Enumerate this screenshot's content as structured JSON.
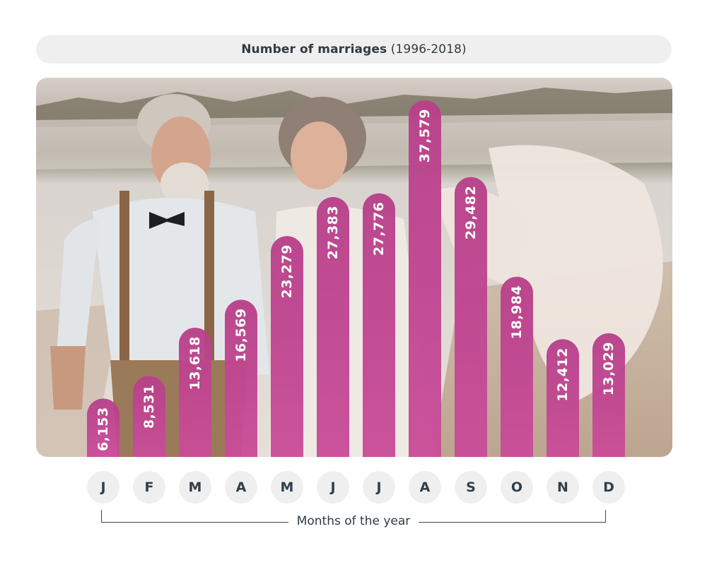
{
  "title": {
    "bold": "Number of marriages",
    "normal": "(1996-2018)"
  },
  "xlabel": "Months of the year",
  "colors": {
    "bar": "#b8408a",
    "bar_light": "#c94d98",
    "label": "#ffffff",
    "chip_bg": "#efefef"
  },
  "chart_data": {
    "type": "bar",
    "title": "Number of marriages (1996-2018)",
    "xlabel": "Months of the year",
    "ylabel": "",
    "categories": [
      "J",
      "F",
      "M",
      "A",
      "M",
      "J",
      "J",
      "A",
      "S",
      "O",
      "N",
      "D"
    ],
    "values": [
      6153,
      8531,
      13618,
      16569,
      23279,
      27383,
      27776,
      37579,
      29482,
      18984,
      12412,
      13029
    ],
    "value_labels": [
      "6,153",
      "8,531",
      "13,618",
      "16,569",
      "23,279",
      "27,383",
      "27,776",
      "37,579",
      "29,482",
      "18,984",
      "12,412",
      "13,029"
    ],
    "ylim": [
      0,
      40000
    ],
    "grid": false,
    "legend": "none"
  }
}
